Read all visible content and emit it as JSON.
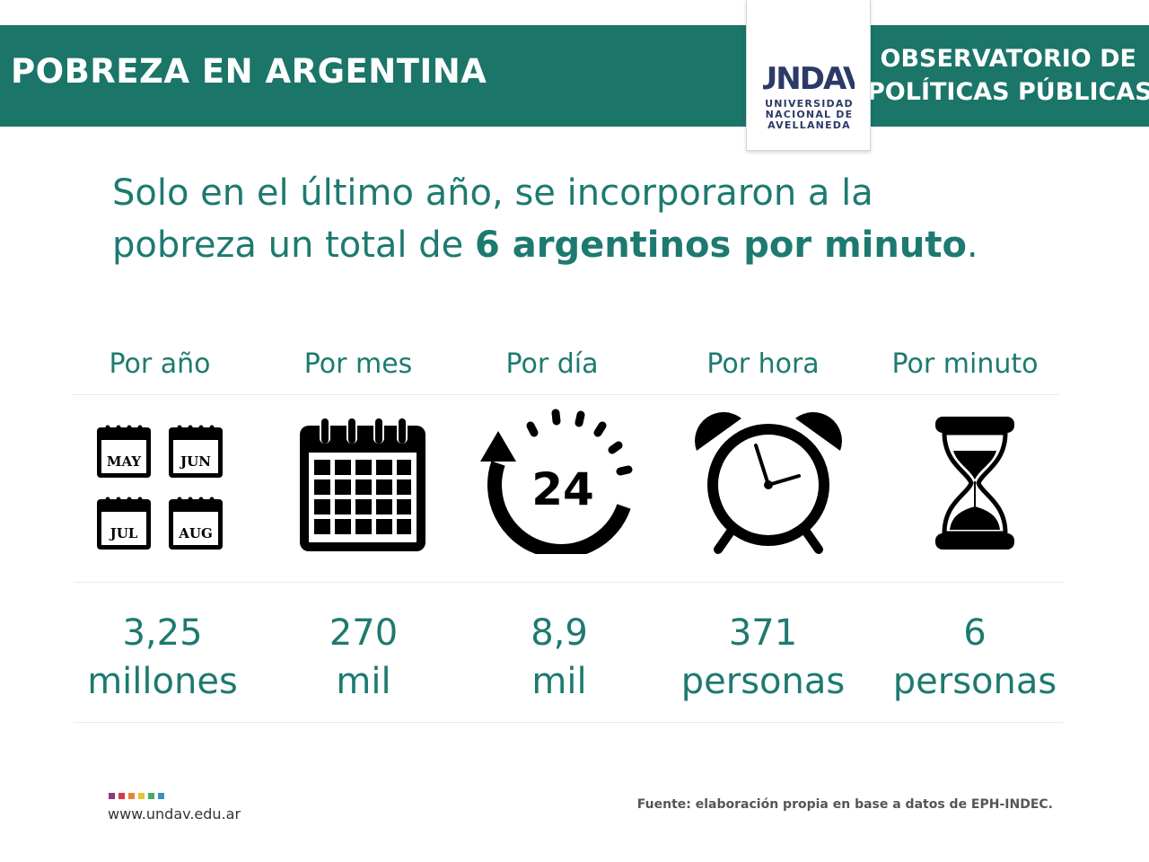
{
  "header": {
    "title": "POBREZA EN ARGENTINA",
    "org_line1": "OBSERVATORIO DE",
    "org_line2": "POLÍTICAS PÚBLICAS",
    "band_color": "#1b7569"
  },
  "logo": {
    "mark": "UNDAV",
    "line1": "UNIVERSIDAD",
    "line2": "NACIONAL DE",
    "line3": "AVELLANEDA",
    "color": "#2b3a67"
  },
  "headline": {
    "line1": "Solo en el último año, se incorporaron a la",
    "line2_pre": "pobreza un total de ",
    "line2_bold": "6 argentinos por minuto",
    "line2_post": "."
  },
  "columns": [
    {
      "label": "Por año",
      "icon": "four-month-calendar-icon",
      "months": [
        "MAY",
        "JUN",
        "JUL",
        "AUG"
      ],
      "value": "3,25",
      "unit": "millones"
    },
    {
      "label": "Por mes",
      "icon": "calendar-icon",
      "value": "270",
      "unit": "mil"
    },
    {
      "label": "Por día",
      "icon": "24-hours-icon",
      "icon_text": "24",
      "value": "8,9",
      "unit": "mil"
    },
    {
      "label": "Por hora",
      "icon": "alarm-clock-icon",
      "value": "371",
      "unit": "personas"
    },
    {
      "label": "Por minuto",
      "icon": "hourglass-icon",
      "value": "6",
      "unit": "personas"
    }
  ],
  "footer": {
    "website": "www.undav.edu.ar",
    "source": "Fuente: elaboración propia en base a datos de EPH-INDEC.",
    "dot_colors": [
      "#8e3a7e",
      "#d63a4a",
      "#e8823a",
      "#e8c43a",
      "#4aa86a",
      "#3a8ec8"
    ]
  },
  "accent_color": "#1d7a70"
}
